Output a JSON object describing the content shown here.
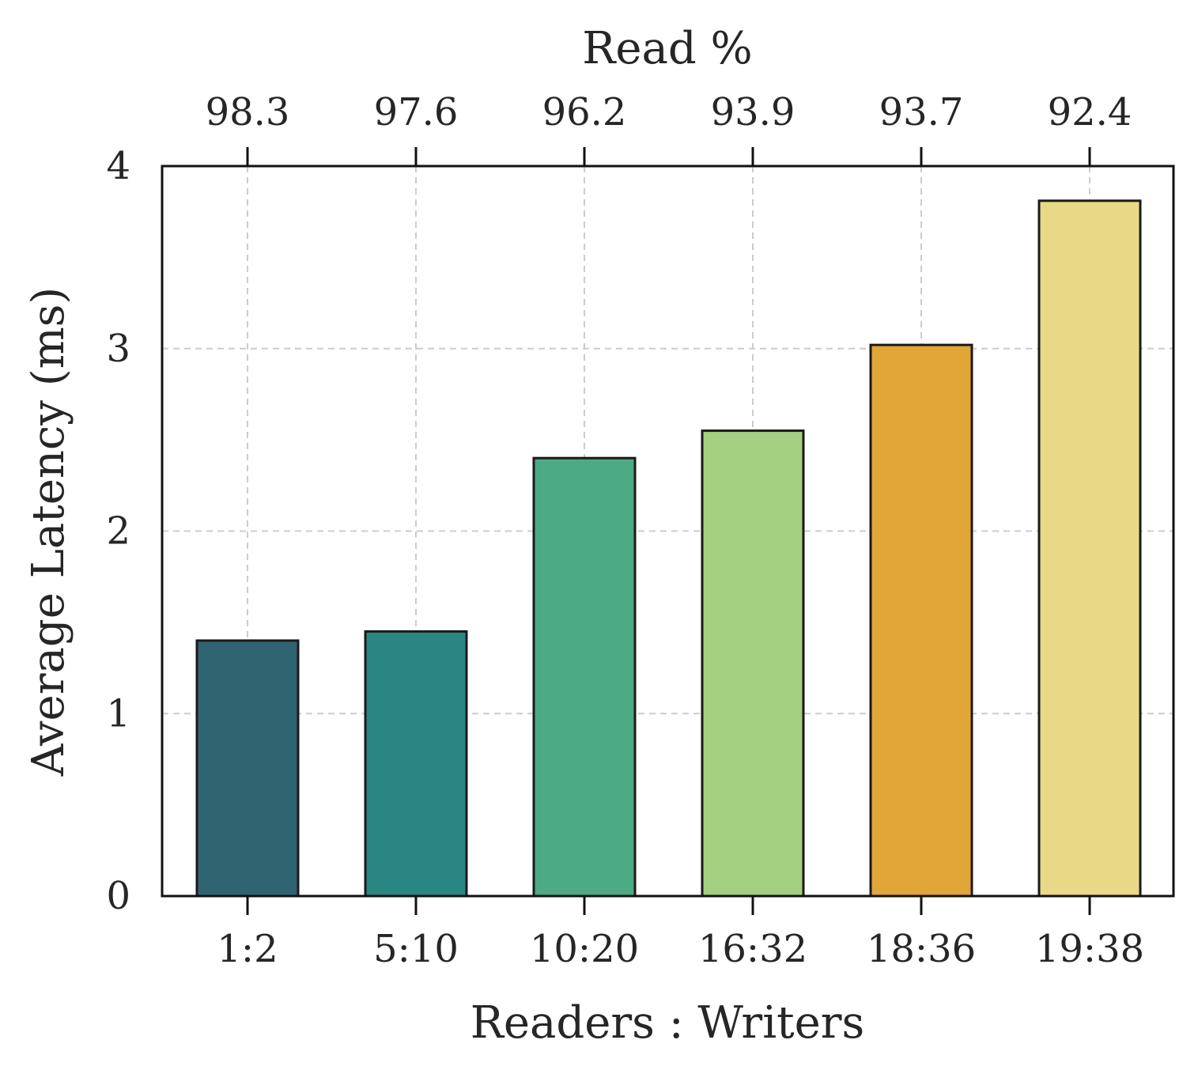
{
  "chart_data": {
    "type": "bar",
    "categories": [
      "1:2",
      "5:10",
      "10:20",
      "16:32",
      "18:36",
      "19:38"
    ],
    "values": [
      1.4,
      1.45,
      2.4,
      2.55,
      3.02,
      3.81
    ],
    "top_axis": {
      "label": "Read %",
      "tick_labels": [
        "98.3",
        "97.6",
        "96.2",
        "93.9",
        "93.7",
        "92.4"
      ]
    },
    "xlabel": "Readers : Writers",
    "ylabel": "Average Latency (ms)",
    "ylim": [
      0,
      4
    ],
    "yticks": [
      "0",
      "1",
      "2",
      "3",
      "4"
    ],
    "bar_colors": [
      "#2e6470",
      "#2a8683",
      "#4caa85",
      "#a2d080",
      "#e1a638",
      "#e9d986"
    ],
    "grid": true
  }
}
